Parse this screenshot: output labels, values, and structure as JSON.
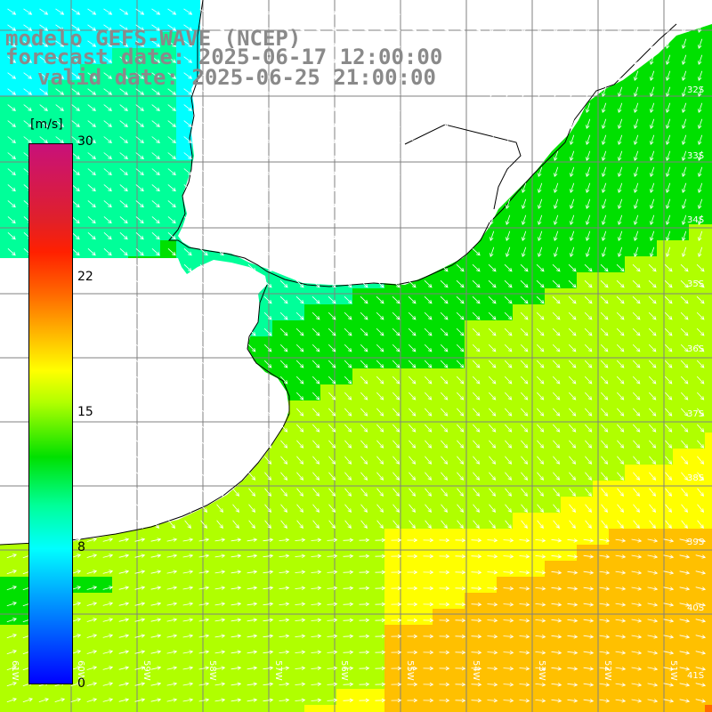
{
  "title": {
    "model": "modelo GEFS-WAVE (NCEP)",
    "forecast": "forecast date: 2025-06-17 12:00:00",
    "valid": "valid date: 2025-06-25 21:00:00"
  },
  "colorbar": {
    "unit": "[m/s]",
    "ticks": [
      "30",
      "22",
      "15",
      "8",
      "0"
    ],
    "colors": [
      "#0000ff",
      "#0050ff",
      "#00a0ff",
      "#00ffff",
      "#00ff99",
      "#00e000",
      "#b0ff00",
      "#ffff00",
      "#ffc000",
      "#ff6a00",
      "#ff2000",
      "#e0202a",
      "#c8117a"
    ]
  },
  "lat_labels": [
    "32S",
    "33S",
    "34S",
    "35S",
    "36S",
    "37S",
    "38S",
    "39S",
    "40S",
    "41S"
  ],
  "lon_labels": [
    "61W",
    "60W",
    "59W",
    "58W",
    "57W",
    "56W",
    "55W",
    "54W",
    "53W",
    "52W",
    "51W"
  ],
  "colors": {
    "land": "#ffffff",
    "coast": "#000000",
    "grid": "#808080",
    "arrow": "#ffffff",
    "title": "#8a8a8a"
  }
}
